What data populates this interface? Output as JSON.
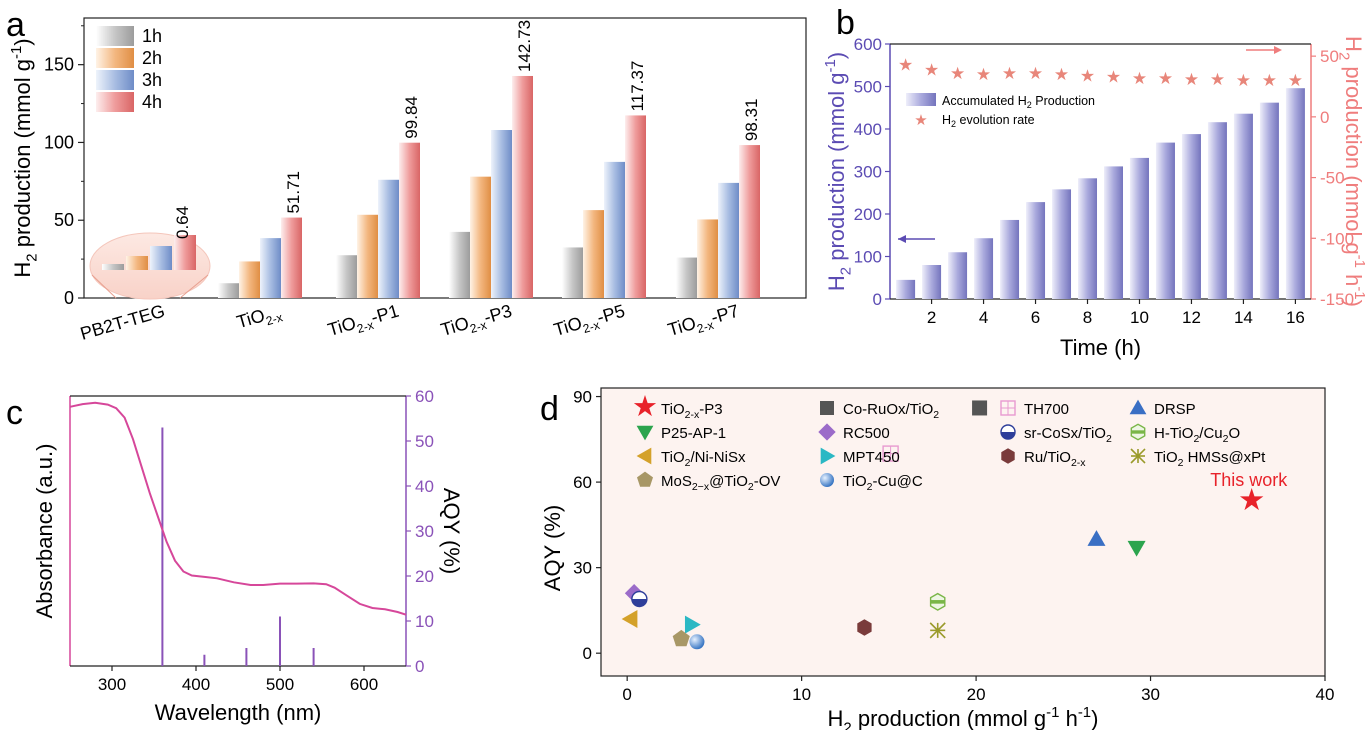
{
  "panels": {
    "a": "a",
    "b": "b",
    "c": "c",
    "d": "d"
  },
  "colors": {
    "gray": "#c8c8c8",
    "orange": "#f2b47c",
    "blue": "#a6b9de",
    "red": "#ef9a9a",
    "purple": "#5d4bb0",
    "salmon": "#f08080",
    "pink": "#d6479a",
    "violet": "#8a52b8"
  },
  "chart_data": [
    {
      "panel": "a",
      "type": "bar",
      "xlabel": "",
      "ylabel_parts": {
        "main": "H",
        "sub": "2",
        "rest": " production (mmol g",
        "sup": "-1",
        "close": ")"
      },
      "ylim": [
        0,
        180
      ],
      "yticks": [
        0,
        50,
        100,
        150
      ],
      "categories": [
        {
          "main": "PB2T-TEG",
          "sub": "",
          "rest": ""
        },
        {
          "main": "TiO",
          "sub": "2-x",
          "rest": ""
        },
        {
          "main": "TiO",
          "sub": "2-x",
          "rest": "-P1"
        },
        {
          "main": "TiO",
          "sub": "2-x",
          "rest": "-P3"
        },
        {
          "main": "TiO",
          "sub": "2-x",
          "rest": "-P5"
        },
        {
          "main": "TiO",
          "sub": "2-x",
          "rest": "-P7"
        }
      ],
      "series": [
        {
          "name": "1h",
          "values": [
            0.16,
            9.5,
            27.5,
            42.5,
            32.5,
            26
          ]
        },
        {
          "name": "2h",
          "values": [
            0.32,
            23.5,
            53.5,
            78,
            56.5,
            50.5
          ]
        },
        {
          "name": "3h",
          "values": [
            0.48,
            38.5,
            76,
            108,
            87.5,
            74
          ]
        },
        {
          "name": "4h",
          "values": [
            0.64,
            51.71,
            99.84,
            142.73,
            117.37,
            98.31
          ]
        }
      ],
      "data_labels": [
        "0.64",
        "51.71",
        "99.84",
        "142.73",
        "117.37",
        "98.31"
      ],
      "legend": "top-left",
      "inset": "magnified PB2T-TEG bars"
    },
    {
      "panel": "b",
      "type": "bar+scatter",
      "xlabel": "Time (h)",
      "ylabel_left_parts": {
        "main": "H",
        "sub": "2",
        "rest": " production (mmol g",
        "sup": "-1",
        "close": ")"
      },
      "ylabel_right_parts": {
        "main": "H",
        "sub": "2",
        "rest": " production (mmol g",
        "sup": "-1",
        "mid": " h",
        "sup2": "-1",
        "close": ")"
      },
      "xlim": [
        0.4,
        16.6
      ],
      "xticks": [
        2,
        4,
        6,
        8,
        10,
        12,
        14,
        16
      ],
      "ylim_left": [
        0,
        600
      ],
      "yticks_left": [
        0,
        100,
        200,
        300,
        400,
        500,
        600
      ],
      "ylim_right": [
        -150,
        60
      ],
      "yticks_right": [
        -150,
        -100,
        -50,
        0,
        50
      ],
      "x": [
        1,
        2,
        3,
        4,
        5,
        6,
        7,
        8,
        9,
        10,
        11,
        12,
        13,
        14,
        15,
        16
      ],
      "bar_values": [
        45,
        80,
        110,
        143,
        186,
        228,
        258,
        284,
        312,
        332,
        368,
        388,
        416,
        436,
        462,
        496
      ],
      "rate_values": [
        44,
        40,
        37,
        36,
        37,
        37,
        36,
        35,
        34,
        33,
        33,
        32,
        32,
        31,
        31,
        31
      ],
      "legend": [
        {
          "main": "Accumulated H",
          "sub": "2",
          "rest": " Production"
        },
        {
          "main": "H",
          "sub": "2",
          "rest": " evolution rate"
        }
      ]
    },
    {
      "panel": "c",
      "type": "line+bar",
      "xlabel": "Wavelength (nm)",
      "ylabel_left": "Absorbance (a.u.)",
      "ylabel_right": "AQY (%)",
      "xlim": [
        250,
        650
      ],
      "xticks": [
        300,
        400,
        500,
        600
      ],
      "ylim_right": [
        0,
        60
      ],
      "yticks_right": [
        0,
        10,
        20,
        30,
        40,
        50,
        60
      ],
      "absorbance_curve": [
        [
          250,
          0.96
        ],
        [
          265,
          0.97
        ],
        [
          280,
          0.975
        ],
        [
          295,
          0.968
        ],
        [
          305,
          0.955
        ],
        [
          315,
          0.92
        ],
        [
          325,
          0.84
        ],
        [
          335,
          0.74
        ],
        [
          345,
          0.64
        ],
        [
          355,
          0.55
        ],
        [
          365,
          0.46
        ],
        [
          375,
          0.39
        ],
        [
          385,
          0.35
        ],
        [
          395,
          0.335
        ],
        [
          410,
          0.33
        ],
        [
          425,
          0.325
        ],
        [
          445,
          0.31
        ],
        [
          465,
          0.3
        ],
        [
          480,
          0.3
        ],
        [
          500,
          0.305
        ],
        [
          520,
          0.305
        ],
        [
          540,
          0.306
        ],
        [
          555,
          0.303
        ],
        [
          565,
          0.29
        ],
        [
          580,
          0.26
        ],
        [
          595,
          0.23
        ],
        [
          610,
          0.215
        ],
        [
          625,
          0.21
        ],
        [
          640,
          0.2
        ],
        [
          650,
          0.19
        ]
      ],
      "aqy_bars": [
        [
          360,
          53
        ],
        [
          410,
          2.5
        ],
        [
          460,
          4
        ],
        [
          500,
          11
        ],
        [
          540,
          4
        ]
      ]
    },
    {
      "panel": "d",
      "type": "scatter",
      "xlabel_parts": {
        "main": "H",
        "sub": "2",
        "rest": " production (mmol g",
        "sup": "-1",
        "mid": " h",
        "sup2": "-1",
        "close": ")"
      },
      "ylabel": "AQY (%)",
      "xlim": [
        -1.5,
        40
      ],
      "xticks": [
        0,
        10,
        20,
        30,
        40
      ],
      "ylim": [
        -8,
        93
      ],
      "yticks": [
        0,
        30,
        60,
        90
      ],
      "annotation": "This work",
      "points": [
        {
          "label": [
            {
              "t": "TiO"
            },
            {
              "t": "2-x",
              "s": "sub"
            },
            {
              "t": "-P3"
            }
          ],
          "marker": "star",
          "color": "#e8222a",
          "x": 35.8,
          "y": 53
        },
        {
          "label": [
            {
              "t": "Co-RuOx/TiO"
            },
            {
              "t": "2",
              "s": "sub"
            }
          ],
          "marker": "square",
          "color": "#555555",
          "x": 20.2,
          "y": 86
        },
        {
          "label": [
            {
              "t": "TH700"
            }
          ],
          "marker": "hollow-square",
          "color": "#e89ad0",
          "x": 15.1,
          "y": 70
        },
        {
          "label": [
            {
              "t": "DRSP"
            }
          ],
          "marker": "triangle-up",
          "color": "#3a6fc4",
          "x": 26.9,
          "y": 40
        },
        {
          "label": [
            {
              "t": "P25-AP-1"
            }
          ],
          "marker": "triangle-down",
          "color": "#2ca44e",
          "x": 29.2,
          "y": 37
        },
        {
          "label": [
            {
              "t": "RC500"
            }
          ],
          "marker": "diamond",
          "color": "#9b6bc9",
          "x": 0.4,
          "y": 21
        },
        {
          "label": [
            {
              "t": "sr-CoSx/TiO"
            },
            {
              "t": "2",
              "s": "sub"
            }
          ],
          "marker": "half-circle",
          "color": "#2e3e9a",
          "x": 0.7,
          "y": 19
        },
        {
          "label": [
            {
              "t": "H-TiO"
            },
            {
              "t": "2",
              "s": "sub"
            },
            {
              "t": "/Cu"
            },
            {
              "t": "2",
              "s": "sub"
            },
            {
              "t": "O"
            }
          ],
          "marker": "half-hexagon",
          "color": "#7ab648",
          "x": 17.8,
          "y": 18
        },
        {
          "label": [
            {
              "t": "TiO"
            },
            {
              "t": "2",
              "s": "sub"
            },
            {
              "t": "/Ni-NiSx"
            }
          ],
          "marker": "triangle-left",
          "color": "#d4a12a",
          "x": 0.2,
          "y": 12
        },
        {
          "label": [
            {
              "t": "MPT450"
            }
          ],
          "marker": "triangle-right",
          "color": "#2bb8c4",
          "x": 3.7,
          "y": 10
        },
        {
          "label": [
            {
              "t": "Ru/TiO"
            },
            {
              "t": "2-x",
              "s": "sub"
            }
          ],
          "marker": "hexagon",
          "color": "#7a3b3b",
          "x": 13.6,
          "y": 9
        },
        {
          "label": [
            {
              "t": "TiO"
            },
            {
              "t": "2",
              "s": "sub"
            },
            {
              "t": " HMSs@xPt"
            }
          ],
          "marker": "asterisk",
          "color": "#9a9a2a",
          "x": 17.8,
          "y": 8
        },
        {
          "label": [
            {
              "t": "MoS"
            },
            {
              "t": "2−x",
              "s": "sub"
            },
            {
              "t": "@TiO"
            },
            {
              "t": "2",
              "s": "sub"
            },
            {
              "t": "-OV"
            }
          ],
          "marker": "pentagon",
          "color": "#a89766",
          "x": 3.1,
          "y": 5
        },
        {
          "label": [
            {
              "t": "TiO"
            },
            {
              "t": "2",
              "s": "sub"
            },
            {
              "t": "-Cu@C"
            }
          ],
          "marker": "sphere",
          "color": "#4a8fd6",
          "x": 4.0,
          "y": 4
        }
      ]
    }
  ]
}
